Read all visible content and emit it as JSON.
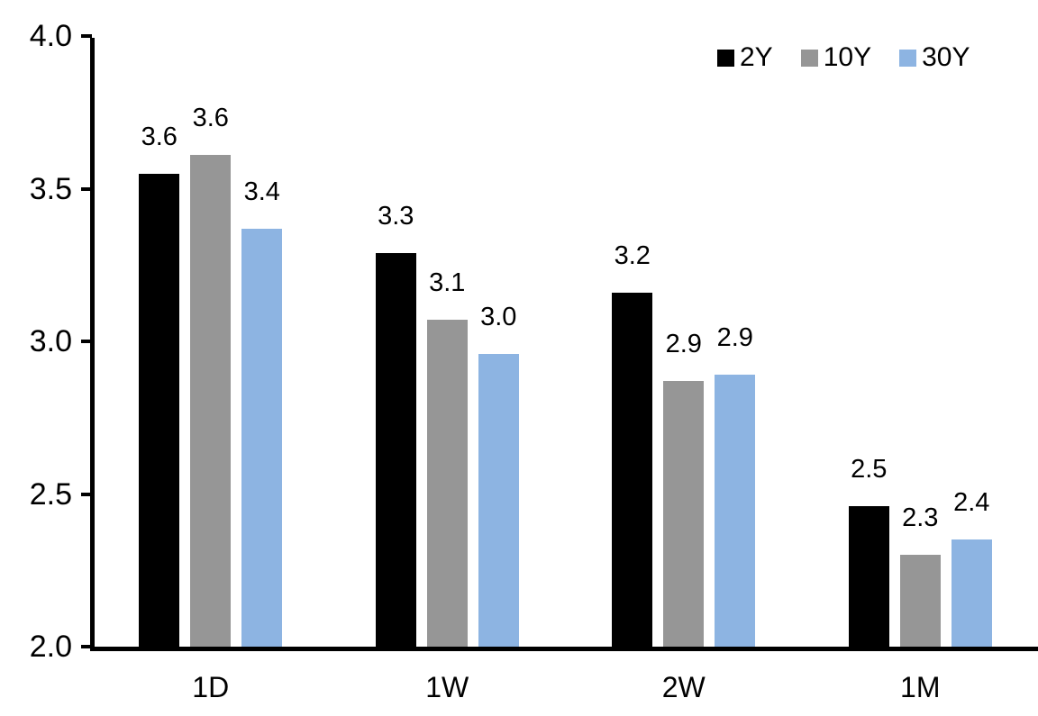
{
  "chart_data": {
    "type": "bar",
    "title": "",
    "xlabel": "",
    "ylabel": "",
    "categories": [
      "1D",
      "1W",
      "2W",
      "1M"
    ],
    "series": [
      {
        "name": "2Y",
        "color": "#000000",
        "values": [
          3.6,
          3.3,
          3.2,
          2.5
        ],
        "labels": [
          "3.6",
          "3.3",
          "3.2",
          "2.5"
        ],
        "values_precise": [
          3.55,
          3.29,
          3.16,
          2.46
        ]
      },
      {
        "name": "10Y",
        "color": "#969696",
        "values": [
          3.6,
          3.1,
          2.9,
          2.3
        ],
        "labels": [
          "3.6",
          "3.1",
          "2.9",
          "2.3"
        ],
        "values_precise": [
          3.61,
          3.07,
          2.87,
          2.3
        ]
      },
      {
        "name": "30Y",
        "color": "#8DB4E2",
        "values": [
          3.4,
          3.0,
          2.9,
          2.4
        ],
        "labels": [
          "3.4",
          "3.0",
          "2.9",
          "2.4"
        ],
        "values_precise": [
          3.37,
          2.96,
          2.89,
          2.35
        ]
      }
    ],
    "y_axis": {
      "min": 2.0,
      "max": 4.0,
      "tick_interval": 0.5,
      "tick_labels": [
        "4.0",
        "3.5",
        "3.0",
        "2.5",
        "2.0"
      ]
    },
    "legend": {
      "position": "top-right",
      "entries": [
        "2Y",
        "10Y",
        "30Y"
      ]
    },
    "grid": false,
    "data_labels_shown": true,
    "axis_color": "#000000",
    "background_color": "#FFFFFF"
  }
}
